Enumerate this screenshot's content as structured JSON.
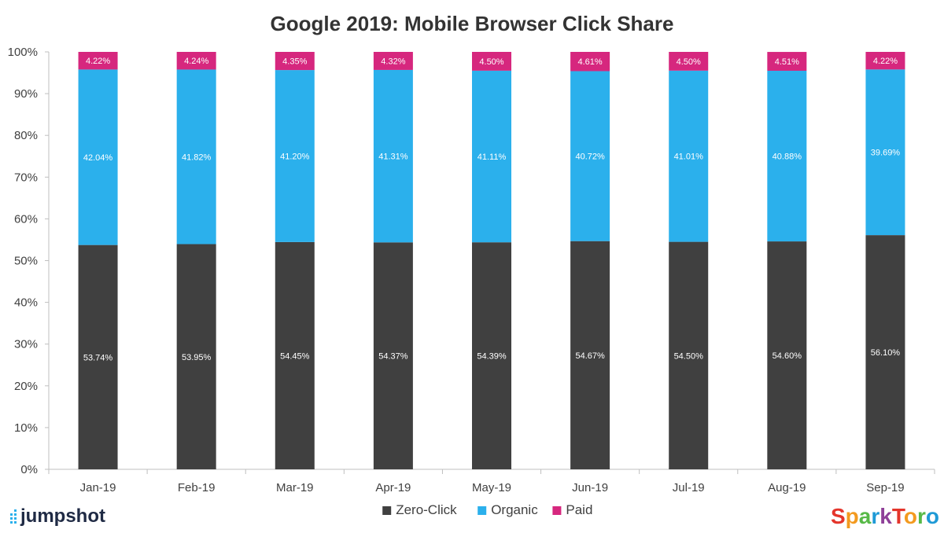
{
  "chart_data": {
    "type": "bar",
    "stacked": true,
    "title": "Google 2019: Mobile Browser Click Share",
    "categories": [
      "Jan-19",
      "Feb-19",
      "Mar-19",
      "Apr-19",
      "May-19",
      "Jun-19",
      "Jul-19",
      "Aug-19",
      "Sep-19"
    ],
    "series": [
      {
        "name": "Zero-Click",
        "color": "#404040",
        "values": [
          53.74,
          53.95,
          54.45,
          54.37,
          54.39,
          54.67,
          54.5,
          54.6,
          56.1
        ],
        "labels": [
          "53.74%",
          "53.95%",
          "54.45%",
          "54.37%",
          "54.39%",
          "54.67%",
          "54.50%",
          "54.60%",
          "56.10%"
        ]
      },
      {
        "name": "Organic",
        "color": "#2bb0ec",
        "values": [
          42.04,
          41.82,
          41.2,
          41.31,
          41.11,
          40.72,
          41.01,
          40.88,
          39.69
        ],
        "labels": [
          "42.04%",
          "41.82%",
          "41.20%",
          "41.31%",
          "41.11%",
          "40.72%",
          "41.01%",
          "40.88%",
          "39.69%"
        ]
      },
      {
        "name": "Paid",
        "color": "#d6277e",
        "values": [
          4.22,
          4.24,
          4.35,
          4.32,
          4.5,
          4.61,
          4.5,
          4.51,
          4.22
        ],
        "labels": [
          "4.22%",
          "4.24%",
          "4.35%",
          "4.32%",
          "4.50%",
          "4.61%",
          "4.50%",
          "4.51%",
          "4.22%"
        ]
      }
    ],
    "ylim": [
      0,
      100
    ],
    "yticks": [
      "0%",
      "10%",
      "20%",
      "30%",
      "40%",
      "50%",
      "60%",
      "70%",
      "80%",
      "90%",
      "100%"
    ],
    "gridlines": false,
    "legend": "bottom-center",
    "xlabel": "",
    "ylabel": ""
  },
  "branding": {
    "left_logo": "jumpshot",
    "right_logo": "SparkToro",
    "right_logo_colors": [
      "#e4352b",
      "#f39a1f",
      "#57b947",
      "#1f9ad6",
      "#8e3f98",
      "#e4352b",
      "#f39a1f",
      "#57b947",
      "#1f9ad6"
    ]
  }
}
